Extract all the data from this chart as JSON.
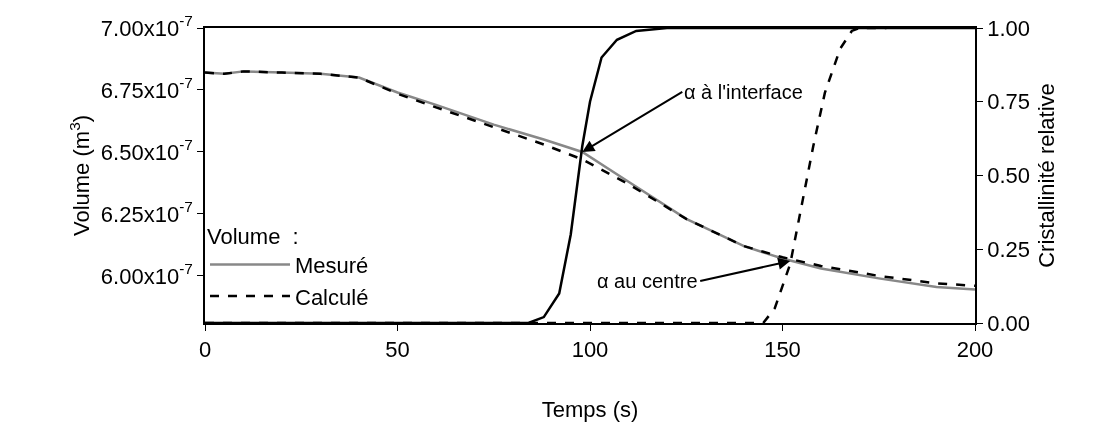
{
  "chart_data": {
    "type": "line",
    "xlabel": "Temps (s)",
    "ylabel": "Volume (m$^{3}$)",
    "y2label": "Cristallinité relative",
    "legend_title": "Volume  :",
    "legend": "bottom left",
    "marker": "none",
    "xlim": [
      0,
      200
    ],
    "xticks": [
      0,
      50,
      100,
      150,
      200
    ],
    "ylim": [
      5.81e-07,
      7e-07
    ],
    "yticks": [
      {
        "value": 6e-07,
        "label": "6.00x10$^{-7}$"
      },
      {
        "value": 6.25e-07,
        "label": "6.25x10$^{-7}$"
      },
      {
        "value": 6.5e-07,
        "label": "6.50x10$^{-7}$"
      },
      {
        "value": 6.75e-07,
        "label": "6.75x10$^{-7}$"
      },
      {
        "value": 7e-07,
        "label": "7.00x10$^{-7}$"
      }
    ],
    "y2lim": [
      0,
      1
    ],
    "y2ticks": [
      {
        "value": 0,
        "label": "0.00"
      },
      {
        "value": 0.25,
        "label": "0.25"
      },
      {
        "value": 0.5,
        "label": "0.50"
      },
      {
        "value": 0.75,
        "label": "0.75"
      },
      {
        "value": 1,
        "label": "1.00"
      }
    ],
    "series": [
      {
        "name": "Mesuré",
        "color": "#888888",
        "line_style": "solid",
        "x": [
          0,
          5,
          10,
          20,
          30,
          40,
          50,
          60,
          75,
          88,
          98,
          110,
          125,
          140,
          150,
          160,
          175,
          190,
          200
        ],
        "values": [
          6.82e-07,
          6.815e-07,
          6.825e-07,
          6.82e-07,
          6.815e-07,
          6.8e-07,
          6.74e-07,
          6.69e-07,
          6.61e-07,
          6.55e-07,
          6.5e-07,
          6.38e-07,
          6.23e-07,
          6.12e-07,
          6.07e-07,
          6.03e-07,
          5.99e-07,
          5.955e-07,
          5.945e-07
        ]
      },
      {
        "name": "Calculé",
        "color": "#000000",
        "line_style": "dashed",
        "x": [
          0,
          5,
          10,
          20,
          30,
          40,
          50,
          60,
          75,
          88,
          98,
          110,
          125,
          140,
          150,
          160,
          175,
          190,
          200
        ],
        "values": [
          6.82e-07,
          6.815e-07,
          6.825e-07,
          6.82e-07,
          6.815e-07,
          6.8e-07,
          6.735e-07,
          6.68e-07,
          6.6e-07,
          6.53e-07,
          6.47e-07,
          6.37e-07,
          6.23e-07,
          6.12e-07,
          6.075e-07,
          6.04e-07,
          6e-07,
          5.97e-07,
          5.96e-07
        ]
      },
      {
        "color": "#000000",
        "line_style": "solid",
        "axis": "y2",
        "x": [
          0,
          84,
          88,
          92,
          95,
          98,
          100,
          103,
          107,
          112,
          120,
          200
        ],
        "values": [
          0,
          0,
          0.02,
          0.1,
          0.3,
          0.6,
          0.75,
          0.9,
          0.96,
          0.99,
          1,
          1
        ]
      },
      {
        "color": "#000000",
        "line_style": "dashed",
        "axis": "y2",
        "x": [
          0,
          145,
          148,
          152,
          155,
          158,
          161,
          165,
          168,
          170,
          177
        ],
        "values": [
          0,
          0,
          0.05,
          0.2,
          0.4,
          0.6,
          0.78,
          0.93,
          0.99,
          1,
          1
        ]
      }
    ],
    "annotations": [
      {
        "text": "α à l'interface",
        "x": 98,
        "y": 6.5e-07
      },
      {
        "text": "α au centre",
        "x": 152,
        "y": 6.06e-07
      }
    ]
  }
}
